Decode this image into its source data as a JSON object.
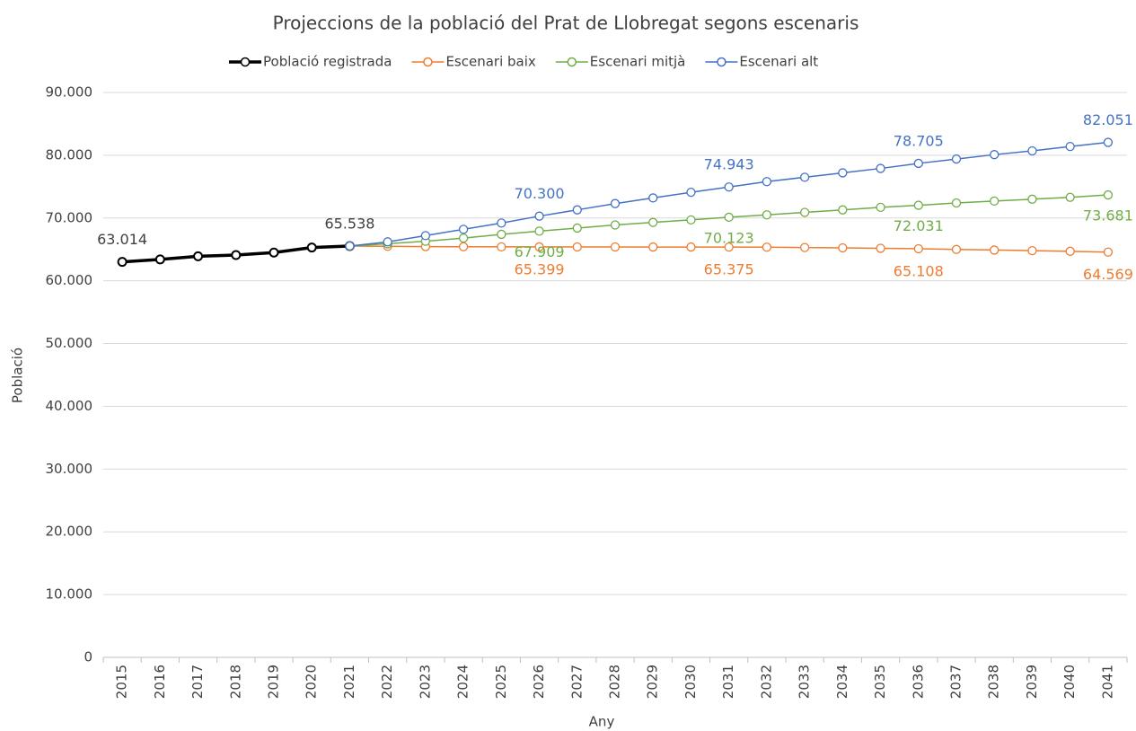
{
  "chart_data": {
    "type": "line",
    "title": "Projeccions de la població del Prat de Llobregat segons escenaris",
    "x_label": "Any",
    "y_label": "Població",
    "categories": [
      "2015",
      "2016",
      "2017",
      "2018",
      "2019",
      "2020",
      "2021",
      "2022",
      "2023",
      "2024",
      "2025",
      "2026",
      "2027",
      "2028",
      "2029",
      "2030",
      "2031",
      "2032",
      "2033",
      "2034",
      "2035",
      "2036",
      "2037",
      "2038",
      "2039",
      "2040",
      "2041"
    ],
    "series": [
      {
        "name": "Població registrada",
        "color": "#000000",
        "values": [
          63014,
          63400,
          63900,
          64100,
          64500,
          65300,
          65538,
          null,
          null,
          null,
          null,
          null,
          null,
          null,
          null,
          null,
          null,
          null,
          null,
          null,
          null,
          null,
          null,
          null,
          null,
          null,
          null
        ],
        "value_labels": [
          "63.014",
          null,
          null,
          null,
          null,
          null,
          "65.538",
          null,
          null,
          null,
          null,
          null,
          null,
          null,
          null,
          null,
          null,
          null,
          null,
          null,
          null,
          null,
          null,
          null,
          null,
          null,
          null
        ]
      },
      {
        "name": "Escenari baix",
        "color": "#ed7d31",
        "values": [
          null,
          null,
          null,
          null,
          null,
          null,
          65538,
          65500,
          65450,
          65420,
          65410,
          65399,
          65390,
          65385,
          65380,
          65378,
          65375,
          65350,
          65300,
          65250,
          65180,
          65108,
          65000,
          64900,
          64800,
          64700,
          64569
        ],
        "value_labels": [
          null,
          null,
          null,
          null,
          null,
          null,
          null,
          null,
          null,
          null,
          null,
          "65.399",
          null,
          null,
          null,
          null,
          "65.375",
          null,
          null,
          null,
          null,
          "65.108",
          null,
          null,
          null,
          null,
          "64.569"
        ]
      },
      {
        "name": "Escenari mitjà",
        "color": "#70ad47",
        "values": [
          null,
          null,
          null,
          null,
          null,
          null,
          65538,
          65900,
          66300,
          66800,
          67400,
          67909,
          68400,
          68900,
          69300,
          69700,
          70123,
          70500,
          70900,
          71300,
          71700,
          72031,
          72400,
          72700,
          73000,
          73300,
          73681
        ],
        "value_labels": [
          null,
          null,
          null,
          null,
          null,
          null,
          null,
          null,
          null,
          null,
          null,
          "67.909",
          null,
          null,
          null,
          null,
          "70.123",
          null,
          null,
          null,
          null,
          "72.031",
          null,
          null,
          null,
          null,
          "73.681"
        ]
      },
      {
        "name": "Escenari alt",
        "color": "#4472c4",
        "values": [
          null,
          null,
          null,
          null,
          null,
          null,
          65538,
          66200,
          67200,
          68200,
          69200,
          70300,
          71300,
          72300,
          73200,
          74100,
          74943,
          75800,
          76500,
          77200,
          77900,
          78705,
          79400,
          80100,
          80700,
          81400,
          82051
        ],
        "value_labels": [
          null,
          null,
          null,
          null,
          null,
          null,
          null,
          null,
          null,
          null,
          null,
          "70.300",
          null,
          null,
          null,
          null,
          "74.943",
          null,
          null,
          null,
          null,
          "78.705",
          null,
          null,
          null,
          null,
          "82.051"
        ]
      }
    ],
    "ylim": [
      0,
      90000
    ],
    "yticks": [
      0,
      {
        "value": 10000,
        "label": "10.000"
      },
      {
        "value": 20000,
        "label": "20.000"
      },
      {
        "value": 30000,
        "label": "30.000"
      },
      {
        "value": 40000,
        "label": "40.000"
      },
      {
        "value": 50000,
        "label": "50.000"
      },
      {
        "value": 60000,
        "label": "60.000"
      },
      {
        "value": 70000,
        "label": "70.000"
      },
      {
        "value": 80000,
        "label": "80.000"
      },
      {
        "value": 90000,
        "label": "90.000"
      }
    ],
    "grid": true,
    "legend": "top"
  }
}
